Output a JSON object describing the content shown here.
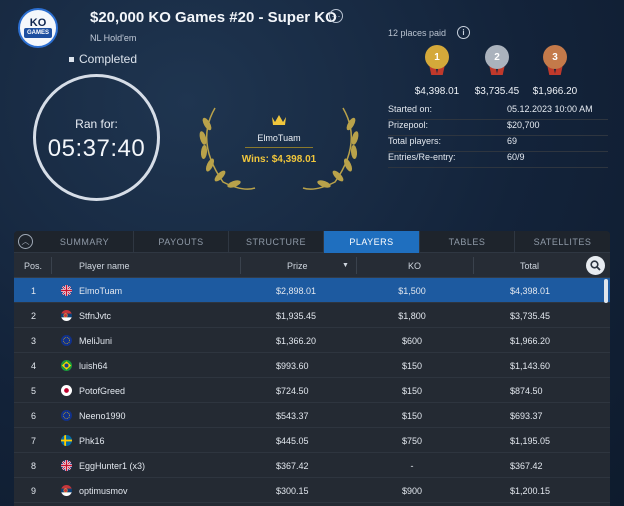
{
  "header": {
    "logo": {
      "top": "KO",
      "bottom": "GAMES"
    },
    "title": "$20,000 KO Games #20 - Super KO",
    "subtitle": "NL Hold'em",
    "status": "Completed"
  },
  "timer": {
    "label": "Ran for:",
    "value": "05:37:40"
  },
  "winner": {
    "name": "ElmoTuam",
    "wins": "Wins: $4,398.01"
  },
  "places": {
    "label": "12 places paid",
    "medals": [
      {
        "rank": "1",
        "amount": "$4,398.01",
        "color": "#d4a93a"
      },
      {
        "rank": "2",
        "amount": "$3,735.45",
        "color": "#aab2bd"
      },
      {
        "rank": "3",
        "amount": "$1,966.20",
        "color": "#c47a4a"
      }
    ]
  },
  "stats": [
    {
      "label": "Started on:",
      "value": "05.12.2023   10:00 AM"
    },
    {
      "label": "Prizepool:",
      "value": "$20,700"
    },
    {
      "label": "Total players:",
      "value": "69"
    },
    {
      "label": "Entries/Re-entry:",
      "value": "60/9"
    }
  ],
  "tabs": [
    "SUMMARY",
    "PAYOUTS",
    "STRUCTURE",
    "PLAYERS",
    "TABLES",
    "SATELLITES"
  ],
  "active_tab": "PLAYERS",
  "table": {
    "headers": {
      "pos": "Pos.",
      "name": "Player name",
      "prize": "Prize",
      "ko": "KO",
      "total": "Total"
    },
    "rows": [
      {
        "pos": "1",
        "name": "ElmoTuam",
        "prize": "$2,898.01",
        "ko": "$1,500",
        "total": "$4,398.01",
        "flag": "gb"
      },
      {
        "pos": "2",
        "name": "StfnJvtc",
        "prize": "$1,935.45",
        "ko": "$1,800",
        "total": "$3,735.45",
        "flag": "rs"
      },
      {
        "pos": "3",
        "name": "MeliJuni",
        "prize": "$1,366.20",
        "ko": "$600",
        "total": "$1,966.20",
        "flag": "eu"
      },
      {
        "pos": "4",
        "name": "luish64",
        "prize": "$993.60",
        "ko": "$150",
        "total": "$1,143.60",
        "flag": "br"
      },
      {
        "pos": "5",
        "name": "PotofGreed",
        "prize": "$724.50",
        "ko": "$150",
        "total": "$874.50",
        "flag": "jp"
      },
      {
        "pos": "6",
        "name": "Neeno1990",
        "prize": "$543.37",
        "ko": "$150",
        "total": "$693.37",
        "flag": "eu"
      },
      {
        "pos": "7",
        "name": "Phk16",
        "prize": "$445.05",
        "ko": "$750",
        "total": "$1,195.05",
        "flag": "se"
      },
      {
        "pos": "8",
        "name": "EggHunter1 (x3)",
        "prize": "$367.42",
        "ko": "-",
        "total": "$367.42",
        "flag": "gb"
      },
      {
        "pos": "9",
        "name": "optimusmov",
        "prize": "$300.15",
        "ko": "$900",
        "total": "$1,200.15",
        "flag": "rs"
      }
    ]
  }
}
